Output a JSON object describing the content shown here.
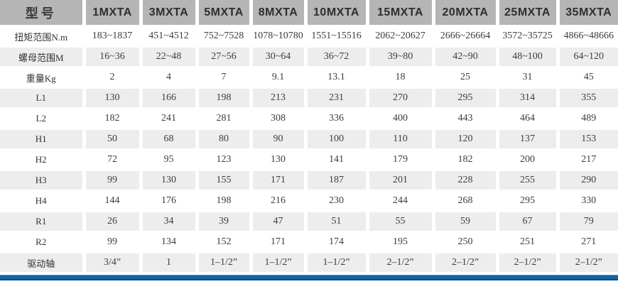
{
  "chart_data": {
    "type": "table",
    "corner_header": "型号",
    "columns": [
      "1MXTA",
      "3MXTA",
      "5MXTA",
      "8MXTA",
      "10MXTA",
      "15MXTA",
      "20MXTA",
      "25MXTA",
      "35MXTA"
    ],
    "rows": [
      {
        "label": "扭矩范围N.m",
        "values": [
          "183~1837",
          "451~4512",
          "752~7528",
          "1078~10780",
          "1551~15516",
          "2062~20627",
          "2666~26664",
          "3572~35725",
          "4866~48666"
        ]
      },
      {
        "label": "螺母范围M",
        "values": [
          "16~36",
          "22~48",
          "27~56",
          "30~64",
          "36~72",
          "39~80",
          "42~90",
          "48~100",
          "64~120"
        ]
      },
      {
        "label": "重量Kg",
        "values": [
          "2",
          "4",
          "7",
          "9.1",
          "13.1",
          "18",
          "25",
          "31",
          "45"
        ]
      },
      {
        "label": "L1",
        "values": [
          "130",
          "166",
          "198",
          "213",
          "231",
          "270",
          "295",
          "314",
          "355"
        ]
      },
      {
        "label": "L2",
        "values": [
          "182",
          "241",
          "281",
          "308",
          "336",
          "400",
          "443",
          "464",
          "489"
        ]
      },
      {
        "label": "H1",
        "values": [
          "50",
          "68",
          "80",
          "90",
          "100",
          "110",
          "120",
          "137",
          "153"
        ]
      },
      {
        "label": "H2",
        "values": [
          "72",
          "95",
          "123",
          "130",
          "141",
          "179",
          "182",
          "200",
          "217"
        ]
      },
      {
        "label": "H3",
        "values": [
          "99",
          "130",
          "155",
          "171",
          "187",
          "201",
          "228",
          "255",
          "290"
        ]
      },
      {
        "label": "H4",
        "values": [
          "144",
          "176",
          "198",
          "216",
          "230",
          "244",
          "268",
          "295",
          "330"
        ]
      },
      {
        "label": "R1",
        "values": [
          "26",
          "34",
          "39",
          "47",
          "51",
          "55",
          "59",
          "67",
          "79"
        ]
      },
      {
        "label": "R2",
        "values": [
          "99",
          "134",
          "152",
          "171",
          "174",
          "195",
          "250",
          "251",
          "271"
        ]
      },
      {
        "label": "驱动轴",
        "values": [
          "3/4”",
          "1",
          "1–1/2”",
          "1–1/2”",
          "1–1/2”",
          "2–1/2”",
          "2–1/2”",
          "2–1/2”",
          "2–1/2”"
        ]
      }
    ]
  },
  "colors": {
    "header_bg": "#b5b5b5",
    "stripe_bg": "#ededed",
    "row_bg": "#ffffff",
    "accent_bar": "#0f66a4",
    "accent_bar_dark": "#0b4d7c",
    "header_text": "#2e2e2e",
    "data_text": "#3d3d3d"
  }
}
